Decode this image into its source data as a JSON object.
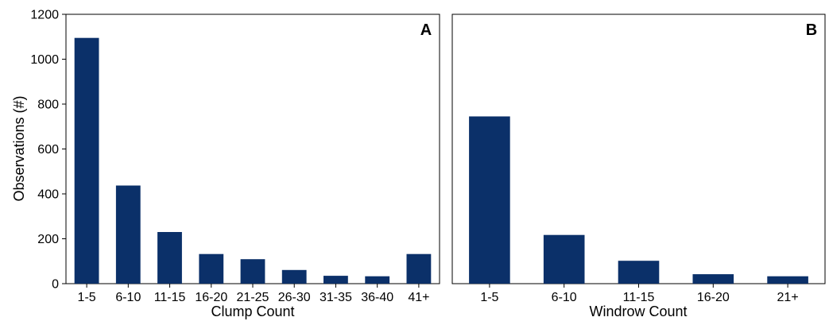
{
  "figure": {
    "bar_color": "#0b3069",
    "frame_color": "#000000",
    "background": "#ffffff"
  },
  "chart_data": [
    {
      "type": "bar",
      "panel_label": "A",
      "title": "",
      "xlabel": "Clump Count",
      "ylabel": "Observations (#)",
      "categories": [
        "1-5",
        "6-10",
        "11-15",
        "16-20",
        "21-25",
        "26-30",
        "31-35",
        "36-40",
        "41+"
      ],
      "values": [
        1095,
        437,
        230,
        132,
        109,
        61,
        35,
        33,
        132
      ],
      "ylim": [
        0,
        1200
      ],
      "yticks": [
        0,
        200,
        400,
        600,
        800,
        1000,
        1200
      ],
      "grid": false,
      "legend": "none"
    },
    {
      "type": "bar",
      "panel_label": "B",
      "title": "",
      "xlabel": "Windrow Count",
      "ylabel": "",
      "categories": [
        "1-5",
        "6-10",
        "11-15",
        "16-20",
        "21+"
      ],
      "values": [
        745,
        217,
        102,
        42,
        33
      ],
      "ylim": [
        0,
        1200
      ],
      "yticks": [],
      "grid": false,
      "legend": "none"
    }
  ]
}
